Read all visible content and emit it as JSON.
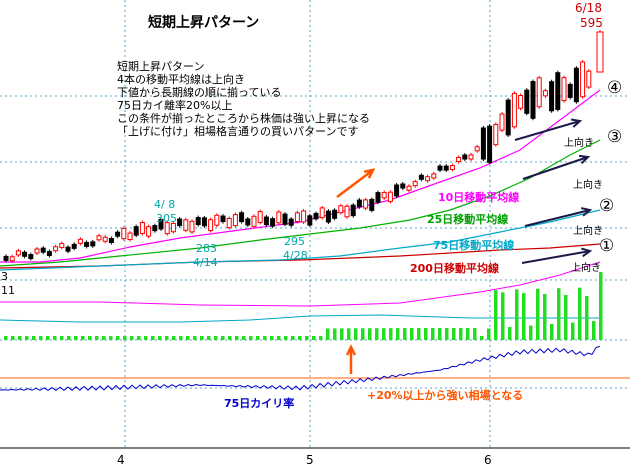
{
  "chart_data": {
    "type": "candlestick",
    "title": "短期上昇パターン",
    "notes": [
      "短期上昇パターン",
      "4本の移動平均線は上向き",
      "下値から長期線の順に揃っている",
      "75日カイ離率20%以上",
      "この条件が揃ったところから株価は強い上昇になる",
      "「上げに付け」相場格言通りの買いパターンです"
    ],
    "x_ticks": [
      "4",
      "5",
      "6"
    ],
    "left_labels": [
      "3",
      "11"
    ],
    "price_labels": [
      {
        "date": "4/ 8",
        "value": "305"
      },
      {
        "date": "4/14",
        "value": "283"
      },
      {
        "date": "4/28",
        "value": "295"
      },
      {
        "date": "6/18",
        "value": "595"
      }
    ],
    "ma_labels": {
      "ma10": "10日移動平均線",
      "ma25": "25日移動平均線",
      "ma75": "75日移動平均線",
      "ma200": "200日移動平均線"
    },
    "up_label": "上向き",
    "circled_numbers": [
      "④",
      "③",
      "②",
      "①"
    ],
    "kairi_label": "75日カイリ率",
    "kairi_note": "+20%以上から強い相場となる",
    "colors": {
      "candle_up": "#ff0000",
      "candle_down": "#000000",
      "ma10": "#ff00ff",
      "ma25": "#00b000",
      "ma75": "#00a8c8",
      "ma200": "#cc0000",
      "volume": "#22dd22",
      "kairi": "#0000cc",
      "kairi_threshold": "#ff6600",
      "label_cyan": "#00a8a8",
      "arrow_orange": "#ff5500",
      "arrow_dark": "#1a1a4a"
    }
  }
}
